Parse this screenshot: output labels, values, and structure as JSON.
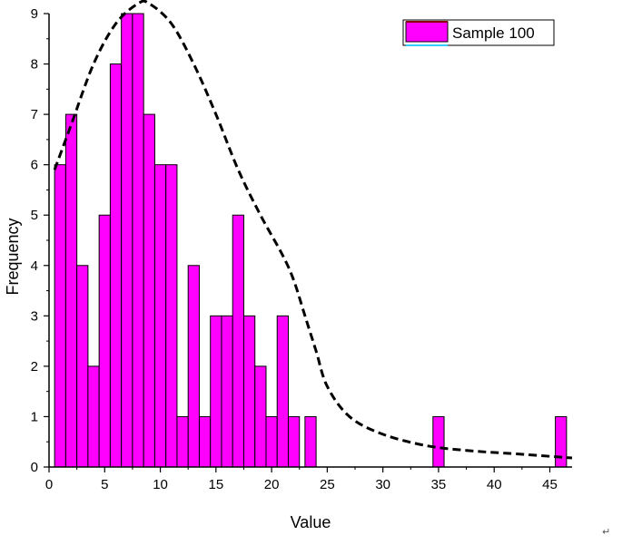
{
  "chart_data": {
    "type": "bar",
    "xlabel": "Value",
    "ylabel": "Frequency",
    "xlim": [
      0,
      47
    ],
    "ylim": [
      0,
      9
    ],
    "x_ticks": [
      0,
      5,
      10,
      15,
      20,
      25,
      30,
      35,
      40,
      45
    ],
    "y_ticks": [
      0,
      1,
      2,
      3,
      4,
      5,
      6,
      7,
      8,
      9
    ],
    "bin_width": 1,
    "grid": false,
    "legend_position": "top-right",
    "series": [
      {
        "name": "Sample 100",
        "kind": "histogram",
        "color": "#ff00ff",
        "edge_color": "#000000",
        "bins": [
          {
            "start": 0.5,
            "count": 6
          },
          {
            "start": 1.5,
            "count": 7
          },
          {
            "start": 2.5,
            "count": 4
          },
          {
            "start": 3.5,
            "count": 2
          },
          {
            "start": 4.5,
            "count": 5
          },
          {
            "start": 5.5,
            "count": 8
          },
          {
            "start": 6.5,
            "count": 9
          },
          {
            "start": 7.5,
            "count": 9
          },
          {
            "start": 8.5,
            "count": 7
          },
          {
            "start": 9.5,
            "count": 6
          },
          {
            "start": 10.5,
            "count": 6
          },
          {
            "start": 11.5,
            "count": 1
          },
          {
            "start": 12.5,
            "count": 4
          },
          {
            "start": 13.5,
            "count": 1
          },
          {
            "start": 14.5,
            "count": 3
          },
          {
            "start": 15.5,
            "count": 3
          },
          {
            "start": 16.5,
            "count": 5
          },
          {
            "start": 17.5,
            "count": 3
          },
          {
            "start": 18.5,
            "count": 2
          },
          {
            "start": 19.5,
            "count": 1
          },
          {
            "start": 20.5,
            "count": 3
          },
          {
            "start": 21.5,
            "count": 1
          },
          {
            "start": 23.0,
            "count": 1
          },
          {
            "start": 34.5,
            "count": 1
          },
          {
            "start": 45.5,
            "count": 1
          }
        ]
      },
      {
        "kind": "line",
        "style": "dashed",
        "color": "#000000",
        "points": [
          [
            0.5,
            5.9
          ],
          [
            2,
            6.8
          ],
          [
            4,
            8.0
          ],
          [
            6,
            8.8
          ],
          [
            8,
            9.2
          ],
          [
            9,
            9.2
          ],
          [
            11,
            8.8
          ],
          [
            13,
            8.0
          ],
          [
            15,
            7.0
          ],
          [
            17,
            5.9
          ],
          [
            19,
            5.0
          ],
          [
            21,
            4.2
          ],
          [
            22,
            3.7
          ],
          [
            23,
            3.0
          ],
          [
            24,
            2.3
          ],
          [
            25,
            1.6
          ],
          [
            27,
            1.0
          ],
          [
            30,
            0.65
          ],
          [
            34,
            0.42
          ],
          [
            38,
            0.32
          ],
          [
            42,
            0.26
          ],
          [
            47,
            0.18
          ]
        ]
      }
    ]
  },
  "annotations": {
    "corner_mark": "↵"
  }
}
